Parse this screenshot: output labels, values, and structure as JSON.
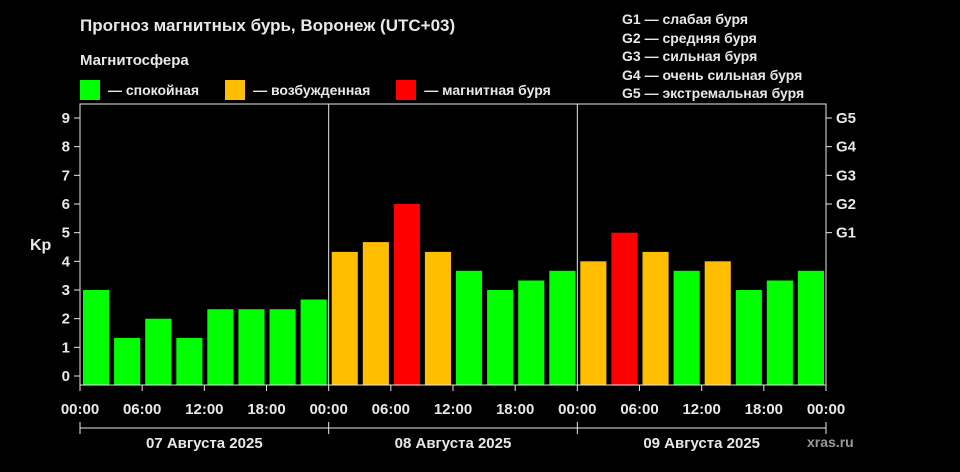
{
  "title": "Прогноз магнитных бурь, Воронеж (UTC+03)",
  "subtitle": "Магнитосфера",
  "legend": [
    {
      "label": "— спокойная",
      "color": "#00ff00"
    },
    {
      "label": "— возбужденная",
      "color": "#ffbf00"
    },
    {
      "label": "— магнитная буря",
      "color": "#ff0000"
    }
  ],
  "g_legend": [
    "G1 — слабая буря",
    "G2 — средняя буря",
    "G3 — сильная буря",
    "G4 — очень сильная буря",
    "G5 — экстремальная буря"
  ],
  "watermark": "xras.ru",
  "chart_data": {
    "type": "bar",
    "ylabel": "Kp",
    "ylim": [
      0,
      9
    ],
    "y_ticks": [
      "0",
      "1",
      "2",
      "3",
      "4",
      "5",
      "6",
      "7",
      "8",
      "9"
    ],
    "g_ticks": [
      {
        "value": 5,
        "label": "G1"
      },
      {
        "value": 6,
        "label": "G2"
      },
      {
        "value": 7,
        "label": "G3"
      },
      {
        "value": 8,
        "label": "G4"
      },
      {
        "value": 9,
        "label": "G5"
      }
    ],
    "x_ticks": [
      "00:00",
      "06:00",
      "12:00",
      "18:00",
      "00:00",
      "06:00",
      "12:00",
      "18:00",
      "00:00",
      "06:00",
      "12:00",
      "18:00",
      "00:00"
    ],
    "days": [
      "07 Августа 2025",
      "08 Августа 2025",
      "09 Августа 2025"
    ],
    "grid": false,
    "colors": {
      "quiet": "#00ff00",
      "active": "#ffbf00",
      "storm": "#ff0000"
    },
    "values": [
      3.0,
      1.33,
      2.0,
      1.33,
      2.33,
      2.33,
      2.33,
      2.67,
      4.33,
      4.67,
      6.0,
      4.33,
      3.67,
      3.0,
      3.33,
      3.67,
      4.0,
      5.0,
      4.33,
      3.67,
      4.0,
      3.0,
      3.33,
      3.67
    ],
    "levels": [
      "quiet",
      "quiet",
      "quiet",
      "quiet",
      "quiet",
      "quiet",
      "quiet",
      "quiet",
      "active",
      "active",
      "storm",
      "active",
      "quiet",
      "quiet",
      "quiet",
      "quiet",
      "active",
      "storm",
      "active",
      "quiet",
      "active",
      "quiet",
      "quiet",
      "quiet"
    ]
  }
}
